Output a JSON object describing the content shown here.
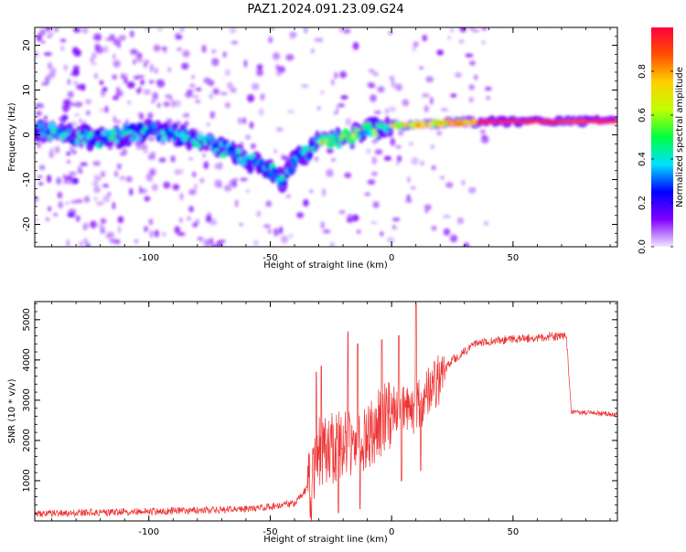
{
  "title": "PAZ1.2024.091.23.09.G24",
  "chart_data": [
    {
      "type": "heatmap",
      "xlabel": "Height of straight line (km)",
      "ylabel": "Frequency (Hz)",
      "xlim": [
        -147,
        93
      ],
      "ylim": [
        -25,
        24
      ],
      "xticks": [
        -100,
        -50,
        0,
        50
      ],
      "yticks": [
        -20,
        -10,
        0,
        10,
        20
      ],
      "colorbar": {
        "label": "Normalized spectral amplitude",
        "range": [
          0,
          1
        ],
        "ticks": [
          "0.0",
          "0.2",
          "0.4",
          "0.6",
          "0.8"
        ],
        "colormap": [
          "#f0e8ff",
          "#8000ff",
          "#0000ff",
          "#00e0ff",
          "#00ff40",
          "#c0ff00",
          "#ffd000",
          "#ff5000",
          "#ff0040"
        ]
      },
      "ridge": [
        {
          "x": -145,
          "f": 1.0
        },
        {
          "x": -120,
          "f": -1.0
        },
        {
          "x": -100,
          "f": 1.0
        },
        {
          "x": -80,
          "f": -1.0
        },
        {
          "x": -65,
          "f": -4.0
        },
        {
          "x": -50,
          "f": -8.0
        },
        {
          "x": -45,
          "f": -10.0
        },
        {
          "x": -40,
          "f": -6.0
        },
        {
          "x": -30,
          "f": -2.0
        },
        {
          "x": -20,
          "f": -1.0
        },
        {
          "x": -10,
          "f": 1.0
        },
        {
          "x": 0,
          "f": 2.0
        },
        {
          "x": 15,
          "f": 2.5
        },
        {
          "x": 40,
          "f": 3.0
        },
        {
          "x": 92,
          "f": 3.0
        }
      ]
    },
    {
      "type": "line",
      "xlabel": "Height of straight line (km)",
      "ylabel": "SNR (10 * v/v)",
      "xlim": [
        -147,
        93
      ],
      "ylim": [
        0,
        5450
      ],
      "xticks": [
        -100,
        -50,
        0,
        50
      ],
      "yticks": [
        1000,
        2000,
        3000,
        4000,
        5000
      ],
      "color": "#ee3333",
      "baseline": [
        {
          "x": -147,
          "y": 150
        },
        {
          "x": -100,
          "y": 200
        },
        {
          "x": -60,
          "y": 250
        },
        {
          "x": -40,
          "y": 400
        },
        {
          "x": -33,
          "y": 900
        },
        {
          "x": -30,
          "y": 1700
        },
        {
          "x": -20,
          "y": 1900
        },
        {
          "x": -10,
          "y": 2100
        },
        {
          "x": 0,
          "y": 2700
        },
        {
          "x": 10,
          "y": 2800
        },
        {
          "x": 18,
          "y": 3400
        },
        {
          "x": 25,
          "y": 4000
        },
        {
          "x": 35,
          "y": 4400
        },
        {
          "x": 45,
          "y": 4500
        },
        {
          "x": 72,
          "y": 4600
        },
        {
          "x": 74,
          "y": 2700
        },
        {
          "x": 93,
          "y": 2650
        }
      ],
      "spikes": [
        {
          "x": -31,
          "y": 3700
        },
        {
          "x": -29,
          "y": 3850
        },
        {
          "x": -18,
          "y": 4700
        },
        {
          "x": -14,
          "y": 4400
        },
        {
          "x": -4,
          "y": 4500
        },
        {
          "x": 3,
          "y": 4600
        },
        {
          "x": 10,
          "y": 5400
        }
      ],
      "dips": [
        {
          "x": -22,
          "y": 200
        },
        {
          "x": -13,
          "y": 300
        },
        {
          "x": 4,
          "y": 1000
        },
        {
          "x": 12,
          "y": 1250
        }
      ]
    }
  ]
}
